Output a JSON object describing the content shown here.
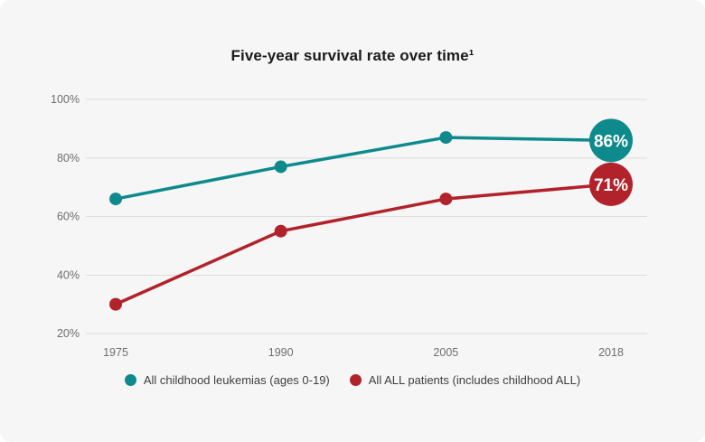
{
  "title": "Five-year survival rate over time¹",
  "chart_data": {
    "type": "line",
    "categories": [
      "1975",
      "1990",
      "2005",
      "2018"
    ],
    "series": [
      {
        "name": "All childhood leukemias (ages 0-19)",
        "color": "#0e8a8c",
        "values": [
          66,
          77,
          87,
          86
        ],
        "end_label": "86%"
      },
      {
        "name": "All ALL patients (includes childhood ALL)",
        "color": "#b2222a",
        "values": [
          30,
          55,
          66,
          71
        ],
        "end_label": "71%"
      }
    ],
    "y_ticks": [
      "100%",
      "80%",
      "60%",
      "40%",
      "20%"
    ],
    "y_tick_values": [
      100,
      80,
      60,
      40,
      20
    ],
    "ylim": [
      20,
      100
    ],
    "grid": true,
    "legend_position": "bottom",
    "xlabel": "",
    "ylabel": ""
  },
  "colors": {
    "card_background": "#f6f6f6",
    "gridline": "#dcdcdc",
    "axis_text": "#6e6e6e",
    "title_text": "#1b1b1b",
    "legend_text": "#3f3f3f",
    "badge_text": "#ffffff",
    "teal": "#0e8a8c",
    "red": "#b2222a"
  }
}
